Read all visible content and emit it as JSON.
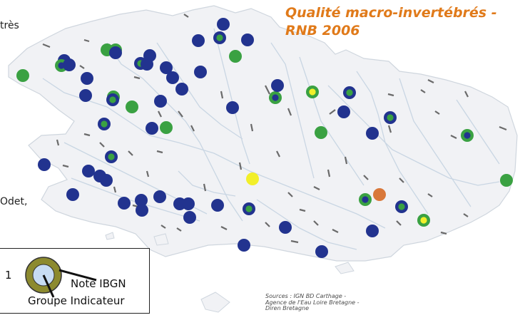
{
  "title_lines": [
    "Qualité macro-invertébrés -",
    "RNB 2006"
  ],
  "side_text": {
    "top": "très",
    "middle": "Odet,",
    "legend_num": "1"
  },
  "legend": {
    "outer_label": "Note IBGN",
    "inner_label": "Groupe Indicateur",
    "outer_color": "#8c8a2f",
    "inner_color": "#c7dcf3"
  },
  "sources": [
    "Sources : IGN BD Carthage -",
    "Agence de l'Eau Loire Bretagne -",
    "Diren Bretagne"
  ],
  "colors": {
    "blue": "#22338f",
    "green": "#3aa142",
    "yellow": "#f2ef2a",
    "orange": "#d9783a",
    "land": "#f1f2f5",
    "river": "#c9d6e3"
  }
}
